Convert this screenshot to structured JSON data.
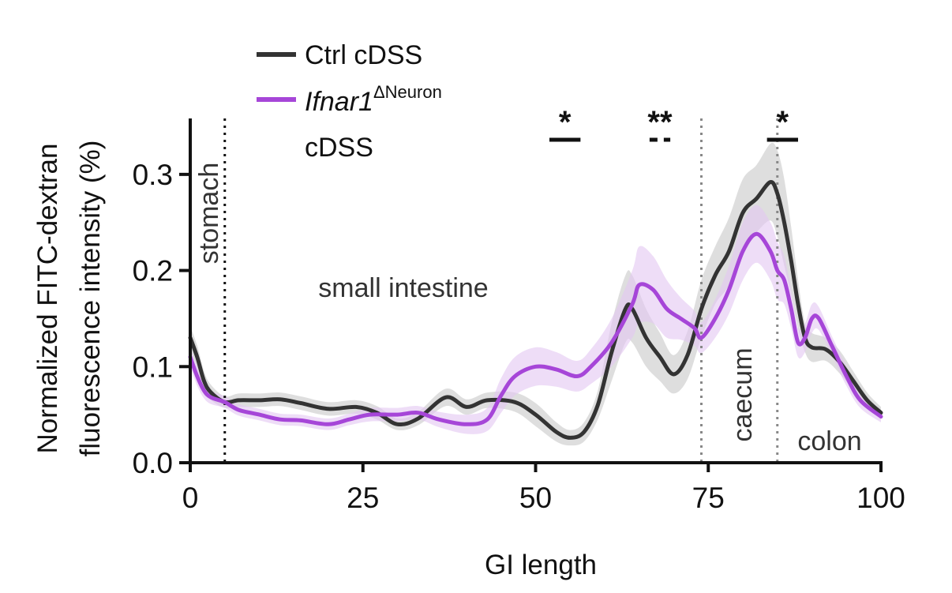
{
  "chart_data": {
    "type": "line",
    "xlabel": "GI length",
    "ylabel_line1": "Normalized FITC-dextran",
    "ylabel_line2": "fluorescence intensity (%)",
    "xlim": [
      0,
      100
    ],
    "ylim": [
      0,
      0.35
    ],
    "x_ticks": [
      0,
      25,
      50,
      75,
      100
    ],
    "x_tick_labels": [
      "0",
      "25",
      "50",
      "75",
      "100"
    ],
    "y_ticks": [
      0,
      0.1,
      0.2,
      0.3
    ],
    "y_tick_labels": [
      "0.0",
      "0.1",
      "0.2",
      "0.3"
    ],
    "grid": false,
    "legend_position": "top-left",
    "legend": {
      "ctrl_label": "Ctrl cDSS",
      "ifnar_italic": "Ifnar1",
      "ifnar_sup": "ΔNeuron",
      "ifnar_line2": "cDSS"
    },
    "region_labels": {
      "stomach": "stomach",
      "small_intestine": "small intestine",
      "caecum": "caecum",
      "colon": "colon"
    },
    "boundaries": [
      5,
      74,
      85
    ],
    "significance": [
      {
        "label": "*",
        "x_from": 52,
        "x_to": 56.5,
        "dashed": false
      },
      {
        "label": "**",
        "x_from": 66.5,
        "x_to": 69.5,
        "dashed": true
      },
      {
        "label": "*",
        "x_from": 83.5,
        "x_to": 88,
        "dashed": false
      }
    ],
    "colors": {
      "ctrl": "#333333",
      "ctrl_band": "#c8c8c8",
      "ifnar": "#a646d8",
      "ifnar_band": "#e2c6f2"
    },
    "series": [
      {
        "name": "Ctrl cDSS",
        "x": [
          0,
          1,
          2,
          3,
          5,
          7,
          10,
          13,
          16,
          20,
          24,
          27,
          30,
          33,
          37,
          40,
          43,
          47,
          50,
          53,
          55,
          57,
          59,
          61,
          63,
          64,
          66,
          68,
          70,
          72,
          74,
          76,
          78,
          80,
          82,
          84,
          85,
          86,
          87,
          88,
          89,
          90,
          92,
          94,
          96,
          98,
          100
        ],
        "y": [
          0.13,
          0.11,
          0.085,
          0.073,
          0.063,
          0.065,
          0.065,
          0.066,
          0.062,
          0.056,
          0.058,
          0.052,
          0.04,
          0.046,
          0.068,
          0.058,
          0.065,
          0.063,
          0.05,
          0.032,
          0.026,
          0.032,
          0.06,
          0.115,
          0.16,
          0.16,
          0.13,
          0.11,
          0.092,
          0.112,
          0.16,
          0.195,
          0.22,
          0.26,
          0.275,
          0.292,
          0.28,
          0.25,
          0.21,
          0.165,
          0.13,
          0.12,
          0.118,
          0.105,
          0.085,
          0.065,
          0.052
        ],
        "err": [
          0.012,
          0.012,
          0.01,
          0.008,
          0.006,
          0.007,
          0.007,
          0.007,
          0.007,
          0.007,
          0.007,
          0.007,
          0.006,
          0.007,
          0.009,
          0.008,
          0.008,
          0.01,
          0.012,
          0.01,
          0.008,
          0.01,
          0.015,
          0.03,
          0.035,
          0.035,
          0.03,
          0.025,
          0.02,
          0.025,
          0.03,
          0.03,
          0.035,
          0.035,
          0.035,
          0.04,
          0.045,
          0.045,
          0.035,
          0.025,
          0.015,
          0.015,
          0.012,
          0.012,
          0.01,
          0.008,
          0.006
        ]
      },
      {
        "name": "Ifnar1ΔNeuron cDSS",
        "x": [
          0,
          1,
          2,
          3,
          5,
          7,
          10,
          13,
          16,
          20,
          23,
          26,
          30,
          33,
          36,
          40,
          43,
          45,
          47,
          50,
          53,
          56,
          58,
          61,
          64,
          65,
          67,
          69,
          71,
          73,
          74,
          76,
          78,
          80,
          82,
          84,
          85,
          86,
          87,
          88,
          89,
          90,
          91,
          93,
          95,
          97,
          100
        ],
        "y": [
          0.11,
          0.09,
          0.075,
          0.068,
          0.063,
          0.055,
          0.05,
          0.045,
          0.044,
          0.04,
          0.045,
          0.05,
          0.05,
          0.052,
          0.045,
          0.04,
          0.045,
          0.07,
          0.09,
          0.1,
          0.097,
          0.09,
          0.1,
          0.125,
          0.165,
          0.185,
          0.18,
          0.16,
          0.15,
          0.14,
          0.13,
          0.15,
          0.18,
          0.22,
          0.238,
          0.22,
          0.2,
          0.19,
          0.16,
          0.125,
          0.13,
          0.15,
          0.15,
          0.12,
          0.09,
          0.065,
          0.048
        ],
        "err": [
          0.01,
          0.01,
          0.008,
          0.007,
          0.006,
          0.006,
          0.006,
          0.006,
          0.006,
          0.006,
          0.006,
          0.007,
          0.007,
          0.007,
          0.008,
          0.01,
          0.012,
          0.018,
          0.02,
          0.02,
          0.018,
          0.016,
          0.018,
          0.025,
          0.035,
          0.04,
          0.035,
          0.03,
          0.022,
          0.018,
          0.016,
          0.02,
          0.025,
          0.03,
          0.03,
          0.03,
          0.03,
          0.025,
          0.02,
          0.015,
          0.015,
          0.015,
          0.012,
          0.01,
          0.01,
          0.008,
          0.006
        ]
      }
    ]
  }
}
